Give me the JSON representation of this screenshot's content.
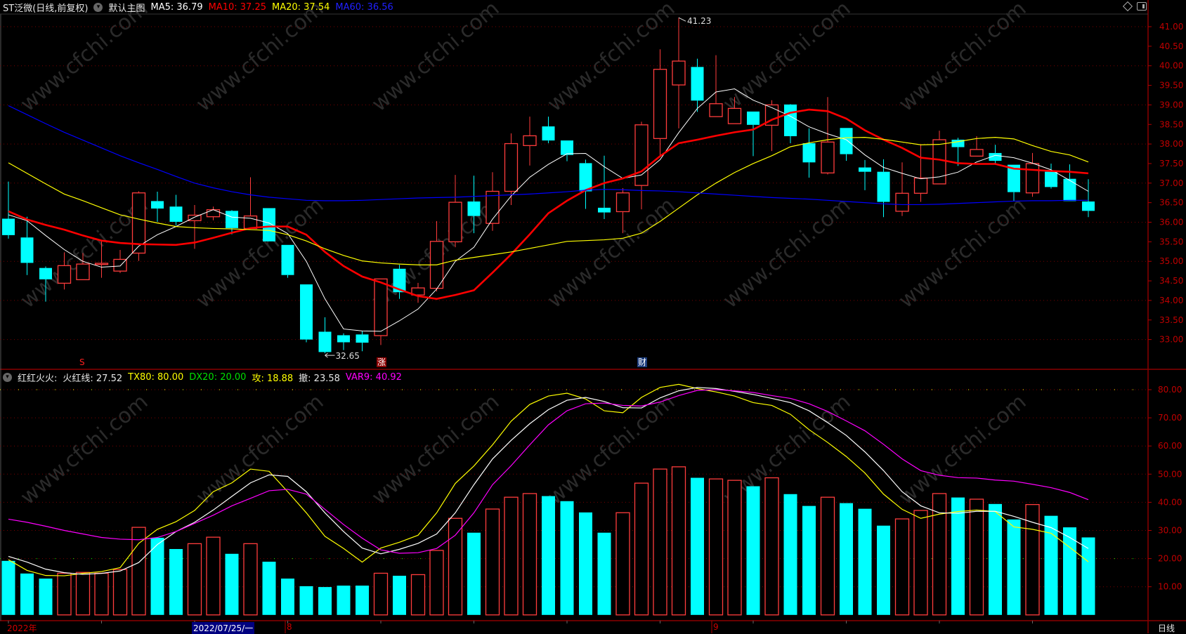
{
  "header": {
    "title": "ST泛微(日线,前复权)",
    "main_chart_label": "默认主图",
    "ma5": "MA5: 36.79",
    "ma10": "MA10: 37.25",
    "ma20": "MA20: 37.54",
    "ma60": "MA60: 36.56"
  },
  "indicator_header": {
    "name": "红红火火:",
    "fire": "火红线: 27.52",
    "tx80": "TX80: 80.00",
    "dx20": "DX20: 20.00",
    "attack": "攻: 18.88",
    "retreat": "撤: 23.58",
    "var9": "VAR9: 40.92"
  },
  "colors": {
    "up": "#ff3c3c",
    "down": "#00ffff",
    "ma5": "#ffffff",
    "ma10": "#ff0000",
    "ma20": "#ffff00",
    "ma60": "#0000ff",
    "attack": "#ffff00",
    "retreat": "#ffffff",
    "var9": "#ff00ff",
    "axis": "#c00000"
  },
  "annotations": {
    "high_label": "41.23",
    "low_label": "32.65",
    "high_index": 36,
    "low_index": 17
  },
  "markers": [
    {
      "text": "S",
      "index": 4,
      "style": "s"
    },
    {
      "text": "涨",
      "index": 20,
      "style": "up"
    },
    {
      "text": "财",
      "index": 34,
      "style": "fin"
    }
  ],
  "x_axis": {
    "year": "2022年",
    "selected_date": "2022/07/25/一",
    "month_8": "8",
    "month_9": "9",
    "period": "日线"
  },
  "watermark": "www.cfchi.com",
  "chart_data": [
    {
      "type": "candlestick",
      "title": "ST泛微(日线,前复权)",
      "ylim": [
        32.5,
        41.3
      ],
      "y_ticks": [
        "41.00",
        "40.50",
        "40.00",
        "39.50",
        "39.00",
        "38.50",
        "38.00",
        "37.50",
        "37.00",
        "36.50",
        "36.00",
        "35.50",
        "35.00",
        "34.50",
        "34.00",
        "33.50",
        "33.00"
      ],
      "candles_ohlc": [
        [
          36.09,
          37.04,
          35.58,
          35.67
        ],
        [
          35.61,
          36.14,
          34.65,
          34.96
        ],
        [
          34.83,
          34.87,
          33.97,
          34.54
        ],
        [
          34.44,
          35.23,
          34.28,
          34.89
        ],
        [
          34.53,
          35.21,
          34.53,
          34.93
        ],
        [
          34.92,
          35.51,
          34.58,
          34.95
        ],
        [
          34.75,
          35.29,
          34.7,
          35.05
        ],
        [
          35.21,
          36.79,
          35.01,
          36.75
        ],
        [
          36.54,
          36.78,
          36.01,
          36.35
        ],
        [
          36.4,
          36.7,
          35.92,
          36.01
        ],
        [
          36.04,
          36.44,
          35.32,
          36.18
        ],
        [
          36.14,
          36.4,
          36.05,
          36.32
        ],
        [
          36.29,
          36.31,
          35.69,
          35.85
        ],
        [
          35.84,
          37.15,
          35.83,
          36.16
        ],
        [
          36.36,
          36.36,
          35.51,
          35.51
        ],
        [
          35.42,
          35.42,
          34.58,
          34.65
        ],
        [
          34.41,
          34.41,
          32.93,
          33.0
        ],
        [
          33.2,
          33.57,
          32.65,
          32.68
        ],
        [
          33.11,
          33.16,
          32.73,
          32.93
        ],
        [
          33.13,
          33.22,
          32.7,
          32.92
        ],
        [
          33.1,
          34.55,
          32.86,
          34.55
        ],
        [
          34.81,
          34.91,
          34.04,
          34.21
        ],
        [
          34.14,
          34.45,
          33.94,
          34.32
        ],
        [
          34.31,
          36.03,
          34.23,
          35.51
        ],
        [
          35.5,
          37.21,
          35.36,
          36.51
        ],
        [
          36.53,
          37.19,
          35.72,
          36.16
        ],
        [
          35.97,
          37.28,
          35.78,
          36.79
        ],
        [
          36.79,
          38.27,
          36.44,
          38.01
        ],
        [
          37.96,
          38.7,
          37.45,
          38.21
        ],
        [
          38.45,
          38.7,
          38.02,
          38.09
        ],
        [
          38.09,
          38.09,
          37.56,
          37.72
        ],
        [
          37.51,
          37.6,
          36.34,
          36.79
        ],
        [
          36.37,
          37.7,
          36.08,
          36.25
        ],
        [
          36.27,
          36.87,
          35.72,
          36.75
        ],
        [
          36.94,
          38.57,
          36.33,
          38.49
        ],
        [
          38.14,
          40.42,
          37.69,
          39.91
        ],
        [
          39.51,
          41.23,
          38.4,
          40.12
        ],
        [
          39.97,
          40.18,
          38.82,
          39.11
        ],
        [
          38.7,
          40.27,
          38.7,
          39.03
        ],
        [
          38.52,
          39.2,
          38.52,
          38.91
        ],
        [
          38.83,
          38.83,
          37.69,
          38.49
        ],
        [
          38.48,
          39.12,
          37.82,
          39.0
        ],
        [
          39.01,
          39.02,
          38.02,
          38.2
        ],
        [
          38.02,
          38.4,
          37.14,
          37.53
        ],
        [
          37.26,
          39.2,
          37.22,
          38.05
        ],
        [
          38.41,
          38.41,
          37.57,
          37.74
        ],
        [
          37.4,
          37.59,
          36.82,
          37.29
        ],
        [
          37.29,
          37.61,
          36.13,
          36.52
        ],
        [
          36.28,
          37.53,
          36.16,
          36.74
        ],
        [
          36.74,
          37.98,
          36.52,
          37.13
        ],
        [
          36.98,
          38.34,
          36.98,
          38.11
        ],
        [
          38.11,
          38.16,
          37.44,
          37.92
        ],
        [
          37.69,
          38.2,
          37.69,
          37.86
        ],
        [
          37.77,
          37.98,
          37.5,
          37.57
        ],
        [
          37.47,
          37.47,
          36.53,
          36.77
        ],
        [
          36.75,
          37.77,
          36.65,
          37.5
        ],
        [
          37.29,
          37.5,
          36.86,
          36.9
        ],
        [
          37.11,
          37.48,
          36.54,
          36.54
        ],
        [
          36.53,
          37.1,
          36.13,
          36.29
        ]
      ],
      "series": [
        {
          "name": "MA5",
          "values": [
            36.19,
            36.04,
            35.66,
            35.3,
            35.0,
            34.85,
            34.88,
            35.39,
            35.68,
            35.89,
            36.13,
            36.32,
            36.13,
            36.1,
            35.98,
            35.71,
            35.0,
            34.04,
            33.27,
            33.22,
            33.21,
            33.48,
            33.78,
            34.29,
            35.0,
            35.36,
            36.08,
            36.67,
            37.15,
            37.48,
            37.75,
            37.76,
            37.42,
            37.12,
            37.21,
            37.6,
            38.29,
            38.91,
            39.33,
            39.41,
            39.12,
            38.93,
            38.71,
            38.44,
            38.26,
            38.11,
            37.72,
            37.4,
            37.25,
            37.11,
            37.16,
            37.28,
            37.54,
            37.71,
            37.65,
            37.51,
            37.34,
            37.07,
            36.79
          ]
        },
        {
          "name": "MA10",
          "values": [
            36.28,
            36.07,
            35.93,
            35.81,
            35.66,
            35.53,
            35.47,
            35.44,
            35.43,
            35.42,
            35.48,
            35.6,
            35.73,
            35.85,
            35.89,
            35.89,
            35.68,
            35.24,
            34.88,
            34.61,
            34.46,
            34.28,
            34.11,
            34.04,
            34.14,
            34.26,
            34.71,
            35.18,
            35.69,
            36.23,
            36.55,
            36.82,
            37.0,
            37.12,
            37.3,
            37.69,
            38.02,
            38.11,
            38.21,
            38.3,
            38.37,
            38.62,
            38.8,
            38.88,
            38.84,
            38.65,
            38.35,
            38.11,
            37.9,
            37.65,
            37.6,
            37.51,
            37.49,
            37.49,
            37.37,
            37.34,
            37.31,
            37.29,
            37.25
          ]
        },
        {
          "name": "MA20",
          "values": [
            37.52,
            37.25,
            36.98,
            36.72,
            36.55,
            36.37,
            36.19,
            36.08,
            35.98,
            35.89,
            35.86,
            35.84,
            35.83,
            35.81,
            35.79,
            35.68,
            35.52,
            35.32,
            35.15,
            35.01,
            34.96,
            34.93,
            34.91,
            34.91,
            35.03,
            35.1,
            35.17,
            35.24,
            35.33,
            35.42,
            35.51,
            35.53,
            35.55,
            35.59,
            35.72,
            36.02,
            36.36,
            36.7,
            37.0,
            37.27,
            37.5,
            37.7,
            37.93,
            38.03,
            38.11,
            38.16,
            38.17,
            38.12,
            38.05,
            37.98,
            37.99,
            38.06,
            38.14,
            38.17,
            38.13,
            37.96,
            37.81,
            37.72,
            37.54
          ]
        },
        {
          "name": "MA60",
          "values": [
            38.98,
            38.75,
            38.52,
            38.3,
            38.1,
            37.9,
            37.7,
            37.52,
            37.35,
            37.17,
            37.0,
            36.88,
            36.78,
            36.7,
            36.64,
            36.6,
            36.56,
            36.55,
            36.55,
            36.56,
            36.58,
            36.6,
            36.62,
            36.63,
            36.64,
            36.66,
            36.68,
            36.7,
            36.72,
            36.75,
            36.78,
            36.82,
            36.84,
            36.83,
            36.81,
            36.8,
            36.78,
            36.75,
            36.72,
            36.69,
            36.66,
            36.63,
            36.61,
            36.59,
            36.56,
            36.53,
            36.5,
            36.47,
            36.45,
            36.45,
            36.46,
            36.48,
            36.5,
            36.52,
            36.54,
            36.55,
            36.55,
            36.56,
            36.56
          ]
        }
      ]
    },
    {
      "type": "bar+line",
      "title": "红红火火",
      "ylim": [
        0,
        84
      ],
      "y_ticks": [
        "80.00",
        "70.00",
        "60.00",
        "50.00",
        "40.00",
        "30.00",
        "20.00",
        "10.00"
      ],
      "bars": {
        "name": "火红线",
        "values": [
          19.2,
          14.7,
          12.9,
          14.8,
          15.1,
          14.8,
          16.1,
          31.1,
          27.4,
          23.4,
          25.3,
          27.6,
          21.7,
          25.3,
          18.9,
          12.9,
          10.2,
          9.9,
          10.4,
          10.4,
          14.8,
          13.9,
          14.3,
          22.9,
          34.3,
          29.2,
          37.6,
          41.8,
          43.1,
          42.2,
          40.4,
          36.4,
          29.2,
          36.3,
          46.8,
          51.8,
          52.6,
          48.7,
          48.3,
          47.8,
          45.7,
          48.7,
          42.9,
          38.7,
          41.8,
          39.7,
          37.7,
          31.7,
          34.1,
          37.1,
          43.1,
          41.7,
          41.1,
          39.4,
          33.9,
          39.2,
          35.2,
          31.1,
          27.52
        ]
      },
      "constant_lines": [
        {
          "name": "TX80",
          "value": 80
        },
        {
          "name": "DX20",
          "value": 20
        }
      ],
      "series": [
        {
          "name": "攻",
          "values": [
            19.6,
            15.8,
            14.0,
            13.9,
            14.75,
            15.4,
            16.8,
            25.4,
            30.4,
            33.1,
            37.1,
            43.75,
            46.9,
            51.8,
            51.0,
            43.75,
            36.25,
            27.9,
            23.6,
            18.75,
            23.75,
            25.8,
            28.3,
            36.25,
            46.7,
            52.9,
            60.4,
            68.8,
            74.75,
            77.75,
            78.75,
            76.7,
            72.5,
            71.8,
            77.25,
            80.8,
            81.9,
            80.4,
            79.2,
            77.75,
            75.4,
            74.4,
            71.25,
            65.8,
            61.25,
            56.25,
            50.4,
            42.9,
            37.5,
            34.3,
            35.8,
            36.7,
            37.25,
            36.7,
            31.25,
            30.4,
            29.0,
            24.0,
            18.88
          ]
        },
        {
          "name": "撤",
          "values": [
            20.8,
            18.75,
            16.25,
            15.0,
            14.4,
            14.75,
            15.6,
            18.6,
            25.0,
            29.6,
            32.9,
            37.25,
            42.1,
            46.9,
            49.75,
            49.2,
            43.75,
            36.25,
            29.6,
            23.75,
            21.7,
            23.3,
            25.4,
            28.75,
            36.25,
            46.25,
            55.4,
            62.0,
            67.9,
            72.9,
            76.25,
            77.25,
            75.8,
            73.6,
            73.5,
            77.1,
            79.6,
            80.8,
            80.4,
            79.4,
            78.3,
            76.9,
            75.4,
            72.5,
            68.3,
            63.75,
            57.9,
            51.25,
            43.75,
            38.75,
            36.25,
            36.1,
            36.8,
            36.8,
            35.0,
            32.9,
            31.0,
            27.5,
            23.58
          ]
        },
        {
          "name": "VAR9",
          "values": [
            34.0,
            32.9,
            31.5,
            30.0,
            28.75,
            27.5,
            26.9,
            26.7,
            27.5,
            29.6,
            32.5,
            35.4,
            38.75,
            41.4,
            44.1,
            44.6,
            42.9,
            37.5,
            32.1,
            27.25,
            23.1,
            21.9,
            22.1,
            23.6,
            28.3,
            36.25,
            46.25,
            53.0,
            60.4,
            67.5,
            72.5,
            75.0,
            75.25,
            74.4,
            74.2,
            75.6,
            77.9,
            79.75,
            80.0,
            79.6,
            79.0,
            77.9,
            76.9,
            75.0,
            72.25,
            68.9,
            65.4,
            60.6,
            55.4,
            51.25,
            49.6,
            48.75,
            48.6,
            47.9,
            47.5,
            46.4,
            45.2,
            43.5,
            40.92
          ]
        }
      ]
    }
  ]
}
